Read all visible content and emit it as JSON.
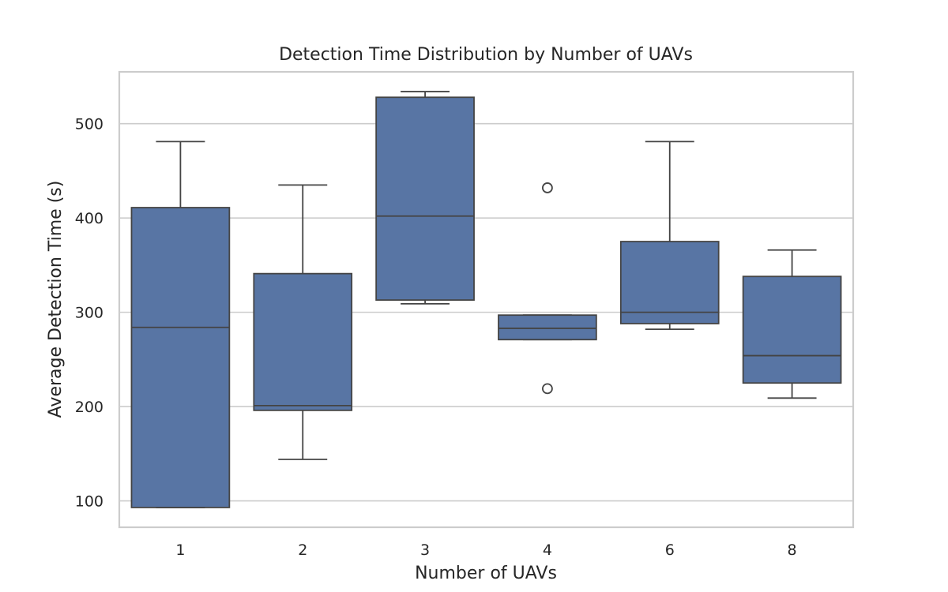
{
  "chart_data": {
    "type": "box",
    "title": "Detection Time Distribution by Number of UAVs",
    "xlabel": "Number of UAVs",
    "ylabel": "Average Detection Time (s)",
    "categories": [
      "1",
      "2",
      "3",
      "4",
      "6",
      "8"
    ],
    "ylim": [
      72,
      555
    ],
    "yticks": [
      100,
      200,
      300,
      400,
      500
    ],
    "grid": true,
    "box_color": "#5875a4",
    "line_color": "#444444",
    "boxes": [
      {
        "category": "1",
        "whisker_low": 93,
        "q1": 93,
        "median": 284,
        "q3": 411,
        "whisker_high": 481,
        "outliers": []
      },
      {
        "category": "2",
        "whisker_low": 144,
        "q1": 196,
        "median": 201,
        "q3": 341,
        "whisker_high": 435,
        "outliers": []
      },
      {
        "category": "3",
        "whisker_low": 309,
        "q1": 313,
        "median": 402,
        "q3": 528,
        "whisker_high": 534,
        "outliers": []
      },
      {
        "category": "4",
        "whisker_low": 271,
        "q1": 271,
        "median": 283,
        "q3": 297,
        "whisker_high": 297,
        "outliers": [
          432,
          219
        ]
      },
      {
        "category": "6",
        "whisker_low": 282,
        "q1": 288,
        "median": 300,
        "q3": 375,
        "whisker_high": 481,
        "outliers": []
      },
      {
        "category": "8",
        "whisker_low": 209,
        "q1": 225,
        "median": 254,
        "q3": 338,
        "whisker_high": 366,
        "outliers": []
      }
    ]
  }
}
